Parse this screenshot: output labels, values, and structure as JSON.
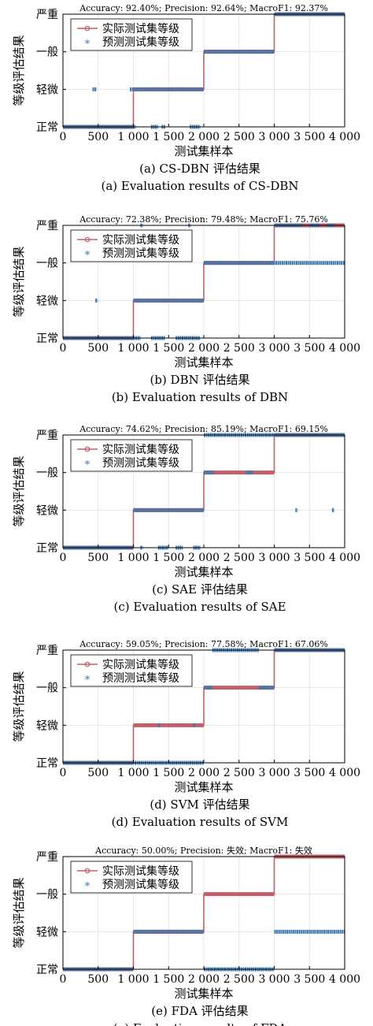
{
  "chart_data": [
    {
      "type": "line",
      "panel": "a",
      "title": "Accuracy: 92.40%; Precision: 92.64%; MacroF1: 92.37%",
      "xlabel": "测试集样本",
      "ylabel": "等级评估结果",
      "xlim": [
        0,
        4000
      ],
      "xticks": [
        "0",
        "500",
        "1 000",
        "1 500",
        "2 000",
        "2 500",
        "3 000",
        "3 500",
        "4 000"
      ],
      "yticks": [
        "正常",
        "轻微",
        "一般",
        "严重"
      ],
      "ylim": [
        0,
        3
      ],
      "grid": true,
      "legend_position": "upper-left",
      "series": [
        {
          "name": "实际测试集等级",
          "style": "line-circle",
          "color": "#c0606a",
          "points": [
            [
              0,
              0
            ],
            [
              1000,
              0
            ],
            [
              1000,
              1
            ],
            [
              2000,
              1
            ],
            [
              2000,
              2
            ],
            [
              3000,
              2
            ],
            [
              3000,
              3
            ],
            [
              4000,
              3
            ]
          ]
        },
        {
          "name": "预测测试集等级",
          "style": "star",
          "color": "#3a78b0",
          "segments": [
            [
              0,
              1000,
              0
            ],
            [
              420,
              480,
              1
            ],
            [
              950,
              2000,
              1
            ],
            [
              1000,
              1010,
              0
            ],
            [
              1250,
              1350,
              0
            ],
            [
              1400,
              1450,
              0
            ],
            [
              1800,
              1950,
              0
            ],
            [
              2000,
              3000,
              2
            ],
            [
              3000,
              4000,
              3
            ]
          ]
        }
      ],
      "caption_cn": "(a) CS-DBN 评估结果",
      "caption_en": "(a) Evaluation results of CS-DBN"
    },
    {
      "type": "line",
      "panel": "b",
      "title": "Accuracy: 72.38%; Precision: 79.48%; MacroF1: 75.76%",
      "xlabel": "测试集样本",
      "ylabel": "等级评估结果",
      "xlim": [
        0,
        4000
      ],
      "xticks": [
        "0",
        "500",
        "1 000",
        "1 500",
        "2 000",
        "2 500",
        "3 000",
        "3 500",
        "4 000"
      ],
      "yticks": [
        "正常",
        "轻微",
        "一般",
        "严重"
      ],
      "ylim": [
        0,
        3
      ],
      "grid": true,
      "legend_position": "upper-left",
      "series": [
        {
          "name": "实际测试集等级",
          "style": "line-circle",
          "color": "#c0606a",
          "points": [
            [
              0,
              0
            ],
            [
              1000,
              0
            ],
            [
              1000,
              1
            ],
            [
              2000,
              1
            ],
            [
              2000,
              2
            ],
            [
              3000,
              2
            ],
            [
              3000,
              3
            ],
            [
              4000,
              3
            ]
          ]
        },
        {
          "name": "预测测试集等级",
          "style": "star",
          "color": "#3a78b0",
          "segments": [
            [
              0,
              1000,
              0
            ],
            [
              460,
              490,
              1
            ],
            [
              1000,
              2000,
              1
            ],
            [
              1000,
              1100,
              0
            ],
            [
              1250,
              1450,
              0
            ],
            [
              1600,
              1950,
              0
            ],
            [
              1100,
              1110,
              3
            ],
            [
              1780,
              1790,
              3
            ],
            [
              2000,
              4000,
              2
            ],
            [
              3000,
              3400,
              3
            ],
            [
              3500,
              3650,
              3
            ],
            [
              3750,
              3850,
              3
            ]
          ]
        }
      ],
      "caption_cn": "(b) DBN 评估结果",
      "caption_en": "(b) Evaluation results of DBN"
    },
    {
      "type": "line",
      "panel": "c",
      "title": "Accuracy: 74.62%; Precision: 85.19%; MacroF1: 69.15%",
      "xlabel": "测试集样本",
      "ylabel": "等级评估结果",
      "xlim": [
        0,
        4000
      ],
      "xticks": [
        "0",
        "500",
        "1 000",
        "1 500",
        "2 000",
        "2 500",
        "3 000",
        "3 500",
        "4 000"
      ],
      "yticks": [
        "正常",
        "轻微",
        "一般",
        "严重"
      ],
      "ylim": [
        0,
        3
      ],
      "grid": true,
      "legend_position": "upper-left",
      "series": [
        {
          "name": "实际测试集等级",
          "style": "line-circle",
          "color": "#c0606a",
          "points": [
            [
              0,
              0
            ],
            [
              1000,
              0
            ],
            [
              1000,
              1
            ],
            [
              2000,
              1
            ],
            [
              2000,
              2
            ],
            [
              3000,
              2
            ],
            [
              3000,
              3
            ],
            [
              4000,
              3
            ]
          ]
        },
        {
          "name": "预测测试集等级",
          "style": "star",
          "color": "#3a78b0",
          "segments": [
            [
              0,
              1000,
              0
            ],
            [
              1000,
              2000,
              1
            ],
            [
              1100,
              1120,
              0
            ],
            [
              1350,
              1500,
              0
            ],
            [
              1600,
              1700,
              0
            ],
            [
              1850,
              1950,
              0
            ],
            [
              2000,
              2150,
              2
            ],
            [
              2600,
              2700,
              2
            ],
            [
              2000,
              4000,
              3
            ],
            [
              3300,
              3310,
              1
            ],
            [
              3820,
              3830,
              1
            ]
          ]
        }
      ],
      "caption_cn": "(c) SAE 评估结果",
      "caption_en": "(c) Evaluation results of SAE"
    },
    {
      "type": "line",
      "panel": "d",
      "title": "Accuracy: 59.05%; Precision: 77.58%; MacroF1: 67.06%",
      "xlabel": "测试集样本",
      "ylabel": "等级评估结果",
      "xlim": [
        0,
        4000
      ],
      "xticks": [
        "0",
        "500",
        "1 000",
        "1 500",
        "2 000",
        "2 500",
        "3 000",
        "3 500",
        "4 000"
      ],
      "yticks": [
        "正常",
        "轻微",
        "一般",
        "严重"
      ],
      "ylim": [
        0,
        3
      ],
      "grid": true,
      "legend_position": "upper-left",
      "series": [
        {
          "name": "实际测试集等级",
          "style": "line-circle",
          "color": "#c0606a",
          "points": [
            [
              0,
              0
            ],
            [
              1000,
              0
            ],
            [
              1000,
              1
            ],
            [
              2000,
              1
            ],
            [
              2000,
              2
            ],
            [
              3000,
              2
            ],
            [
              3000,
              3
            ],
            [
              4000,
              3
            ]
          ]
        },
        {
          "name": "预测测试集等级",
          "style": "star",
          "color": "#3a78b0",
          "segments": [
            [
              0,
              2000,
              0
            ],
            [
              1350,
              1380,
              1
            ],
            [
              1850,
              1880,
              1
            ],
            [
              2000,
              2120,
              2
            ],
            [
              2780,
              3000,
              2
            ],
            [
              2120,
              2780,
              3
            ],
            [
              3000,
              4000,
              3
            ]
          ]
        }
      ],
      "caption_cn": "(d) SVM 评估结果",
      "caption_en": "(d) Evaluation results of SVM"
    },
    {
      "type": "line",
      "panel": "e",
      "title": "Accuracy: 50.00%; Precision: 失效; MacroF1: 失效",
      "xlabel": "测试集样本",
      "ylabel": "等级评估结果",
      "xlim": [
        0,
        4000
      ],
      "xticks": [
        "0",
        "500",
        "1 000",
        "1 500",
        "2 000",
        "2 500",
        "3 000",
        "3 500",
        "4 000"
      ],
      "yticks": [
        "正常",
        "轻微",
        "一般",
        "严重"
      ],
      "ylim": [
        0,
        3
      ],
      "grid": true,
      "legend_position": "upper-left",
      "series": [
        {
          "name": "实际测试集等级",
          "style": "line-circle",
          "color": "#c0606a",
          "points": [
            [
              0,
              0
            ],
            [
              1000,
              0
            ],
            [
              1000,
              1
            ],
            [
              2000,
              1
            ],
            [
              2000,
              2
            ],
            [
              3000,
              2
            ],
            [
              3000,
              3
            ],
            [
              4000,
              3
            ]
          ]
        },
        {
          "name": "预测测试集等级",
          "style": "star",
          "color": "#3a78b0",
          "segments": [
            [
              0,
              1000,
              0
            ],
            [
              1000,
              2000,
              1
            ],
            [
              2000,
              3000,
              0
            ],
            [
              3000,
              4000,
              1
            ]
          ]
        }
      ],
      "caption_cn": "(e) FDA 评估结果",
      "caption_en": "(e) Evaluation results of FDA"
    }
  ]
}
